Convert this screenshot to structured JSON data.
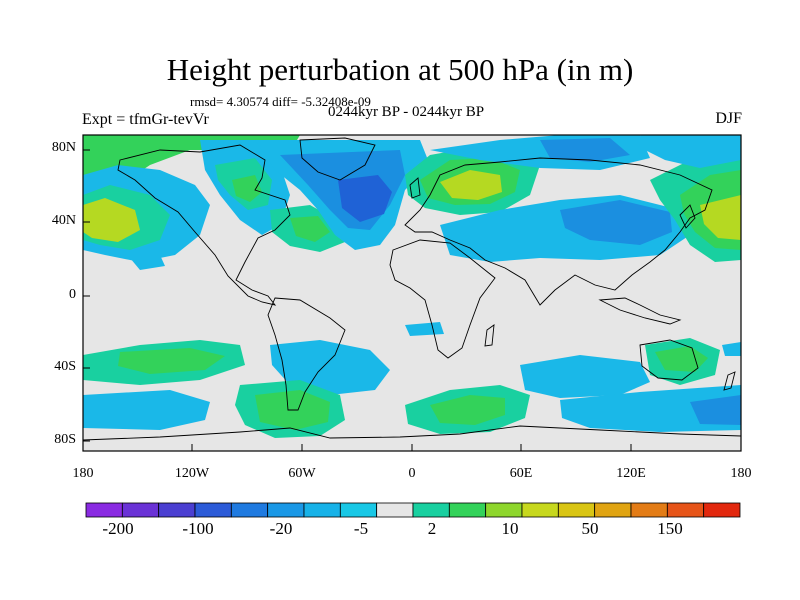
{
  "title": "Height perturbation at 500 hPa (in m)",
  "stats": "rmsd= 4.30574 diff= -5.32408e-09",
  "subtitle": "0244kyr BP - 0244kyr BP",
  "left_label": "Expt = tfmGr-tevVr",
  "right_label": "DJF",
  "y_ticks": [
    "80N",
    "40N",
    "0",
    "40S",
    "80S"
  ],
  "x_ticks": [
    "180",
    "120W",
    "60W",
    "0",
    "60E",
    "120E",
    "180"
  ],
  "colorbar": {
    "labels": [
      "-200",
      "-100",
      "-20",
      "-5",
      "2",
      "10",
      "50",
      "150"
    ],
    "colors": [
      "#8a2be2",
      "#6a32d6",
      "#4b3fd1",
      "#2c5bd8",
      "#1f7ae0",
      "#1a98e6",
      "#17b2e8",
      "#19c8e6",
      "#e6e6e6",
      "#19d0a0",
      "#33d25a",
      "#8ed62c",
      "#c7d81e",
      "#d9c514",
      "#e0a412",
      "#e37c16",
      "#e65418",
      "#e2280e"
    ]
  },
  "field_colors": {
    "background": "#e6e6e6",
    "light_blue": "#1ab8e8",
    "mid_blue": "#1b8fe0",
    "dark_blue": "#1f62d6",
    "teal": "#19d0a0",
    "green": "#33d25a",
    "yellow_green": "#b5d922"
  }
}
